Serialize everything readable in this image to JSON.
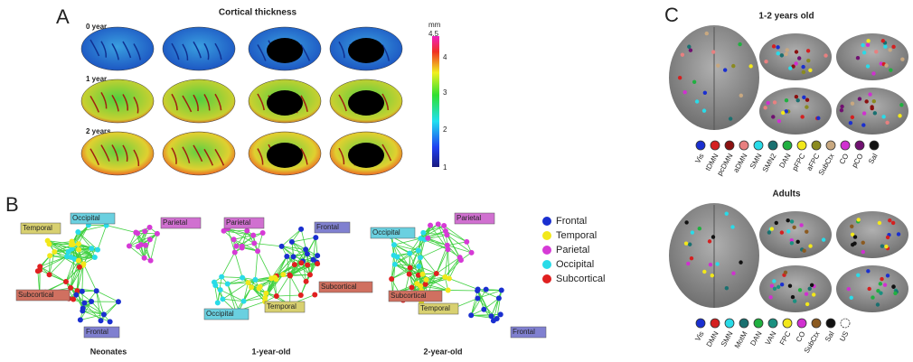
{
  "panel_a": {
    "label": "A",
    "title": "Cortical thickness",
    "rows": [
      "0 year",
      "1 year",
      "2 years"
    ],
    "colorbar": {
      "unit": "mm",
      "ticks": [
        "4.5",
        "4",
        "3",
        "2",
        "1"
      ]
    }
  },
  "panel_b": {
    "label": "B",
    "networks": [
      {
        "title": "Neonates",
        "labels": [
          "Occipital",
          "Temporal",
          "Parietal",
          "Subcortical",
          "Frontal"
        ]
      },
      {
        "title": "1-year-old",
        "labels": [
          "Parietal",
          "Frontal",
          "Subcortical",
          "Temporal",
          "Occipital"
        ]
      },
      {
        "title": "2-year-old",
        "labels": [
          "Occipital",
          "Parietal",
          "Subcortical",
          "Temporal",
          "Frontal"
        ]
      }
    ],
    "legend": [
      {
        "name": "Frontal",
        "color": "#1a2fd0"
      },
      {
        "name": "Temporal",
        "color": "#f2e81a"
      },
      {
        "name": "Parietal",
        "color": "#d63ad6"
      },
      {
        "name": "Occipital",
        "color": "#29dbe8"
      },
      {
        "name": "Subcortical",
        "color": "#e02020"
      }
    ]
  },
  "panel_c": {
    "label": "C",
    "groups": [
      {
        "title": "1-2 years old",
        "legend": [
          {
            "name": "Vis",
            "color": "#1a2fd0"
          },
          {
            "name": "tDMN",
            "color": "#d42020"
          },
          {
            "name": "pcDMN",
            "color": "#8b1010"
          },
          {
            "name": "aDMN",
            "color": "#e88080"
          },
          {
            "name": "SMN",
            "color": "#29dbe8"
          },
          {
            "name": "SMN2",
            "color": "#1a7070"
          },
          {
            "name": "DAN",
            "color": "#20b040"
          },
          {
            "name": "pFPC",
            "color": "#f2e81a"
          },
          {
            "name": "aFPC",
            "color": "#8a8a20"
          },
          {
            "name": "SubCtx",
            "color": "#c8a880"
          },
          {
            "name": "CO",
            "color": "#d030d0"
          },
          {
            "name": "pCO",
            "color": "#701070"
          },
          {
            "name": "Sal",
            "color": "#111111"
          }
        ]
      },
      {
        "title": "Adults",
        "legend": [
          {
            "name": "Vis",
            "color": "#1a2fd0"
          },
          {
            "name": "DMN",
            "color": "#d42020"
          },
          {
            "name": "SMN",
            "color": "#29dbe8"
          },
          {
            "name": "MotM",
            "color": "#1a7070"
          },
          {
            "name": "DAN",
            "color": "#20b040"
          },
          {
            "name": "VAN",
            "color": "#1a9080"
          },
          {
            "name": "FPC",
            "color": "#f2e81a"
          },
          {
            "name": "CO",
            "color": "#d030d0"
          },
          {
            "name": "SubCtx",
            "color": "#8b5a20"
          },
          {
            "name": "Sal",
            "color": "#111111"
          },
          {
            "name": "US",
            "color": "none"
          }
        ]
      }
    ]
  }
}
